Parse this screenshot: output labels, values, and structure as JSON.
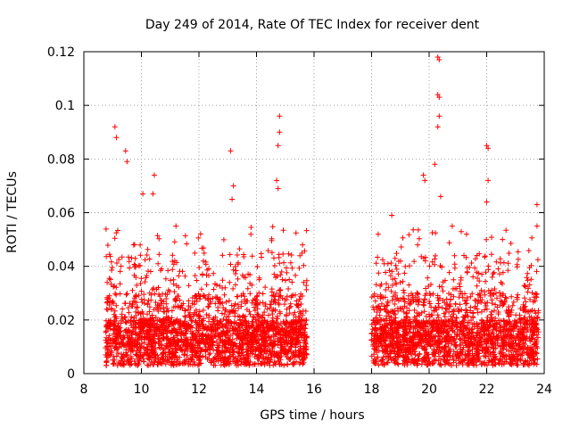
{
  "chart_data": {
    "type": "scatter",
    "title": "Day 249 of 2014, Rate Of TEC Index for receiver dent",
    "xlabel": "GPS time / hours",
    "ylabel": "ROTI / TECUs",
    "xlim": [
      8,
      24
    ],
    "ylim": [
      0,
      0.12
    ],
    "xticks": [
      8,
      10,
      12,
      14,
      16,
      18,
      20,
      22,
      24
    ],
    "xtick_labels": [
      "8",
      "10",
      "12",
      "14",
      "16",
      "18",
      "20",
      "22",
      "24"
    ],
    "yticks": [
      0,
      0.02,
      0.04,
      0.06,
      0.08,
      0.1,
      0.12
    ],
    "ytick_labels": [
      "0",
      "0.02",
      "0.04",
      "0.06",
      "0.08",
      "0.1",
      "0.12"
    ],
    "grid": true,
    "marker": "+",
    "color": "#ff0000",
    "coverage": [
      {
        "start": 8.75,
        "end": 15.75
      },
      {
        "start": 18.0,
        "end": 23.8
      }
    ],
    "notable_points": [
      {
        "x": 9.08,
        "y": 0.092
      },
      {
        "x": 9.13,
        "y": 0.088
      },
      {
        "x": 9.45,
        "y": 0.083
      },
      {
        "x": 9.5,
        "y": 0.079
      },
      {
        "x": 10.05,
        "y": 0.067
      },
      {
        "x": 10.45,
        "y": 0.074
      },
      {
        "x": 10.4,
        "y": 0.067
      },
      {
        "x": 11.2,
        "y": 0.055
      },
      {
        "x": 13.1,
        "y": 0.083
      },
      {
        "x": 13.2,
        "y": 0.07
      },
      {
        "x": 13.15,
        "y": 0.065
      },
      {
        "x": 14.8,
        "y": 0.096
      },
      {
        "x": 14.8,
        "y": 0.09
      },
      {
        "x": 14.75,
        "y": 0.085
      },
      {
        "x": 14.7,
        "y": 0.072
      },
      {
        "x": 14.75,
        "y": 0.069
      },
      {
        "x": 15.6,
        "y": 0.048
      },
      {
        "x": 18.7,
        "y": 0.059
      },
      {
        "x": 19.8,
        "y": 0.074
      },
      {
        "x": 19.85,
        "y": 0.072
      },
      {
        "x": 20.2,
        "y": 0.078
      },
      {
        "x": 20.3,
        "y": 0.118
      },
      {
        "x": 20.35,
        "y": 0.117
      },
      {
        "x": 20.3,
        "y": 0.104
      },
      {
        "x": 20.35,
        "y": 0.103
      },
      {
        "x": 20.35,
        "y": 0.096
      },
      {
        "x": 20.3,
        "y": 0.092
      },
      {
        "x": 20.4,
        "y": 0.066
      },
      {
        "x": 21.3,
        "y": 0.052
      },
      {
        "x": 22.0,
        "y": 0.085
      },
      {
        "x": 22.05,
        "y": 0.084
      },
      {
        "x": 22.05,
        "y": 0.072
      },
      {
        "x": 22.0,
        "y": 0.064
      },
      {
        "x": 22.55,
        "y": 0.05
      },
      {
        "x": 23.75,
        "y": 0.063
      },
      {
        "x": 23.75,
        "y": 0.055
      }
    ]
  }
}
